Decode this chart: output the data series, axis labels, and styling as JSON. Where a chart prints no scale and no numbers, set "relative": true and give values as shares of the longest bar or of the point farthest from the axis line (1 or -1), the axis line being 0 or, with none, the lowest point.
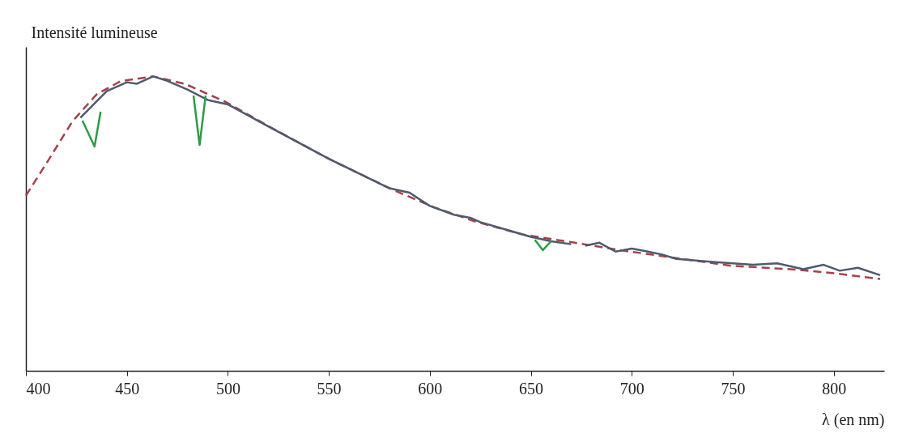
{
  "chart_data": {
    "type": "line",
    "relative": true,
    "xlabel": "λ (en nm)",
    "ylabel": "Intensité lumineuse",
    "xlim": [
      400,
      825
    ],
    "xticks": [
      400,
      450,
      500,
      550,
      600,
      650,
      700,
      750,
      800
    ],
    "grid": false,
    "marker": "none",
    "series": [
      {
        "color": "#a8404a",
        "line_style": "dashed",
        "x": [
          400,
          411,
          423,
          435,
          447,
          463,
          479,
          499,
          523,
          550,
          582,
          602,
          622,
          646,
          670,
          694,
          721,
          749,
          781,
          801,
          823
        ],
        "values": [
          0.595,
          0.714,
          0.847,
          0.939,
          0.984,
          1.0,
          0.974,
          0.913,
          0.82,
          0.72,
          0.614,
          0.556,
          0.508,
          0.463,
          0.437,
          0.41,
          0.384,
          0.357,
          0.344,
          0.331,
          0.312
        ]
      },
      {
        "color": "#4e5a6e",
        "line_style": "solid",
        "x": [
          427,
          440,
          450,
          455,
          463,
          470,
          480,
          490,
          500,
          520,
          550,
          580,
          590,
          600,
          612,
          620,
          625,
          640,
          650,
          660,
          670,
          674,
          677,
          684,
          692,
          700,
          708,
          715,
          722,
          740,
          760,
          772,
          785,
          795,
          803,
          812,
          823
        ],
        "values": [
          0.86,
          0.95,
          0.98,
          0.975,
          1.0,
          0.985,
          0.955,
          0.92,
          0.905,
          0.83,
          0.72,
          0.62,
          0.605,
          0.56,
          0.53,
          0.52,
          0.505,
          0.475,
          0.455,
          0.44,
          0.43,
          null,
          0.425,
          0.435,
          0.405,
          0.415,
          0.405,
          0.395,
          0.38,
          0.37,
          0.36,
          0.365,
          0.345,
          0.36,
          0.34,
          0.35,
          0.325
        ]
      },
      {
        "color": "#2e9a48",
        "line_style": "solid",
        "x": [
          428,
          434,
          437,
          438,
          483,
          486,
          489,
          490,
          652,
          656,
          660
        ],
        "values": [
          0.85,
          0.762,
          0.88,
          null,
          0.935,
          0.767,
          0.935,
          null,
          0.445,
          0.41,
          0.44
        ]
      }
    ]
  }
}
